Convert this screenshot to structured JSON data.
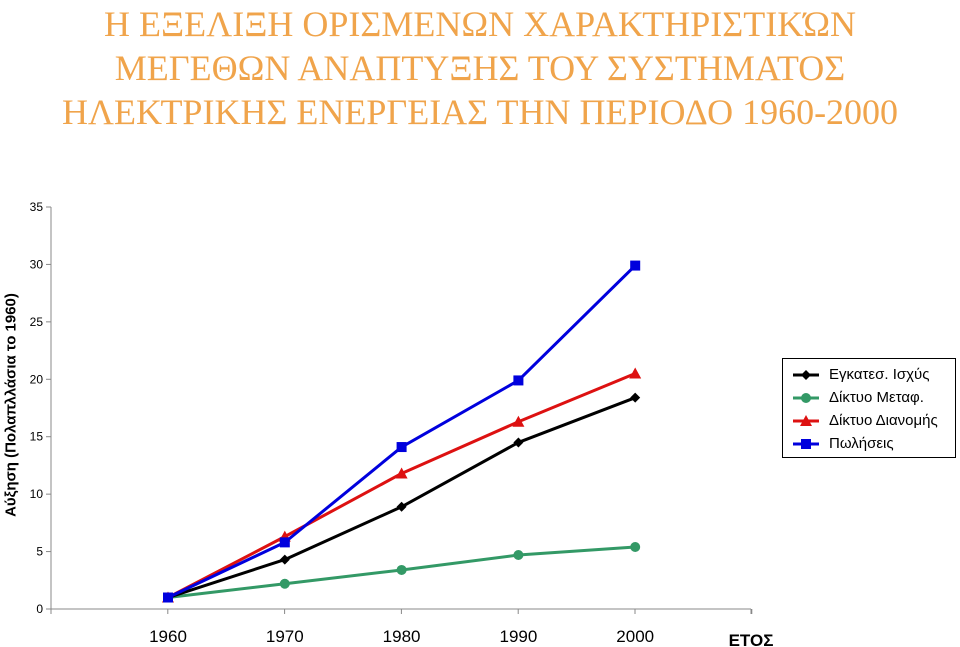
{
  "title_lines": [
    "Η ΕΞΕΛΙΞΗ ΟΡΙΣΜΕΝΩΝ ΧΑΡΑΚΤΗΡΙΣΤΙΚΏΝ",
    "ΜΕΓΕΘΩΝ ΑΝΑΠΤΥΞΗΣ ΤΟΥ ΣΥΣΤΗΜΑΤΟΣ",
    "ΗΛΕΚΤΡΙΚΗΣ ΕΝΕΡΓΕΙΑΣ ΤΗΝ ΠΕΡΙΟΔΟ 1960-2000"
  ],
  "colors": {
    "title": "#F0A44B"
  },
  "chart_data": {
    "type": "line",
    "title": "Η ΕΞΕΛΙΞΗ ΟΡΙΣΜΕΝΩΝ ΧΑΡΑΚΤΗΡΙΣΤΙΚΏΝ ΜΕΓΕΘΩΝ ΑΝΑΠΤΥΞΗΣ ΤΟΥ ΣΥΣΤΗΜΑΤΟΣ ΗΛΕΚΤΡΙΚΗΣ ΕΝΕΡΓΕΙΑΣ ΤΗΝ ΠΕΡΙΟΔΟ 1960-2000",
    "xlabel": "ΕΤΟΣ",
    "ylabel": "Αύξηση (Πολαπλλάσια το 1960)",
    "x": [
      "1960",
      "1970",
      "1980",
      "1990",
      "2000"
    ],
    "ylim": [
      0,
      35
    ],
    "yticks": [
      "0",
      "5",
      "10",
      "15",
      "20",
      "25",
      "30",
      "35"
    ],
    "grid": false,
    "legend_position": "right",
    "series": [
      {
        "name": "Εγκατεσ. Ισχύς",
        "color": "#000000",
        "marker": "diamond",
        "values": [
          1,
          4.3,
          8.9,
          14.5,
          18.4
        ]
      },
      {
        "name": "Δίκτυο Μεταφ.",
        "color": "#339966",
        "marker": "circle",
        "values": [
          1,
          2.2,
          3.4,
          4.7,
          5.4
        ]
      },
      {
        "name": "Δίκτυο Διανομής",
        "color": "#DD1111",
        "marker": "triangle",
        "values": [
          1,
          6.3,
          11.8,
          16.3,
          20.5
        ]
      },
      {
        "name": "Πωλήσεις",
        "color": "#0000DD",
        "marker": "square",
        "values": [
          1,
          5.8,
          14.1,
          19.9,
          29.9
        ]
      }
    ]
  }
}
